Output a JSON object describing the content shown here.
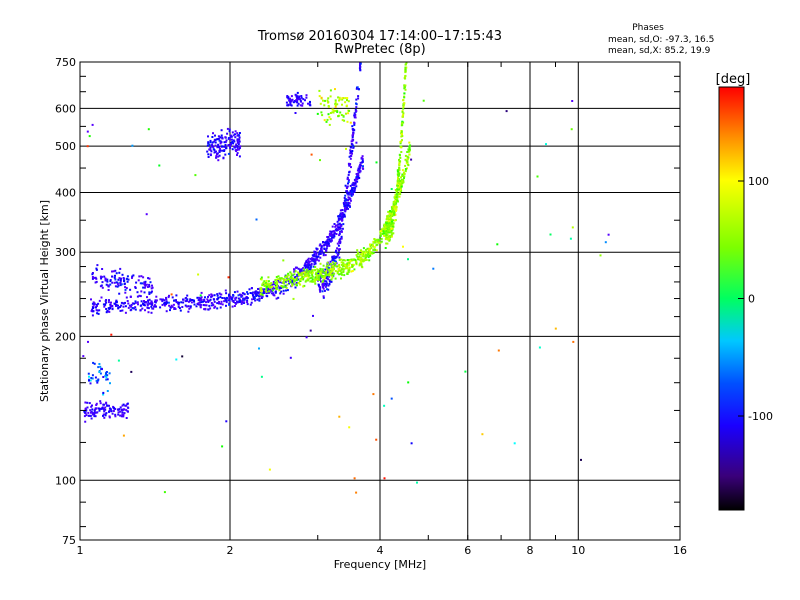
{
  "chart_data": {
    "type": "scatter",
    "title": "Tromsø 20160304 17:14:00–17:15:43",
    "subtitle": "RwPretec (8p)",
    "xlabel": "Frequency [MHz]",
    "ylabel": "Stationary phase Virtual Height [km]",
    "x_scale": "log",
    "y_scale": "log",
    "xlim": [
      1,
      16
    ],
    "ylim": [
      75,
      750
    ],
    "x_ticks": [
      1,
      2,
      4,
      6,
      8,
      10,
      16
    ],
    "y_ticks": [
      75,
      100,
      200,
      300,
      400,
      500,
      600,
      750
    ],
    "grid": true,
    "stats": {
      "heading": "Phases",
      "line_o": "mean, sd,O:  -97.3,  16.5",
      "line_x": "mean, sd,X:   85.2,  19.9"
    },
    "colorbar": {
      "label": "[deg]",
      "range": [
        -180,
        180
      ],
      "ticks": [
        100,
        0,
        -100
      ],
      "colormap": "rainbow"
    },
    "series": [
      {
        "name": "O",
        "mean_phase": -97.3,
        "sd_phase": 16.5
      },
      {
        "name": "X",
        "mean_phase": 85.2,
        "sd_phase": 19.9
      }
    ]
  }
}
